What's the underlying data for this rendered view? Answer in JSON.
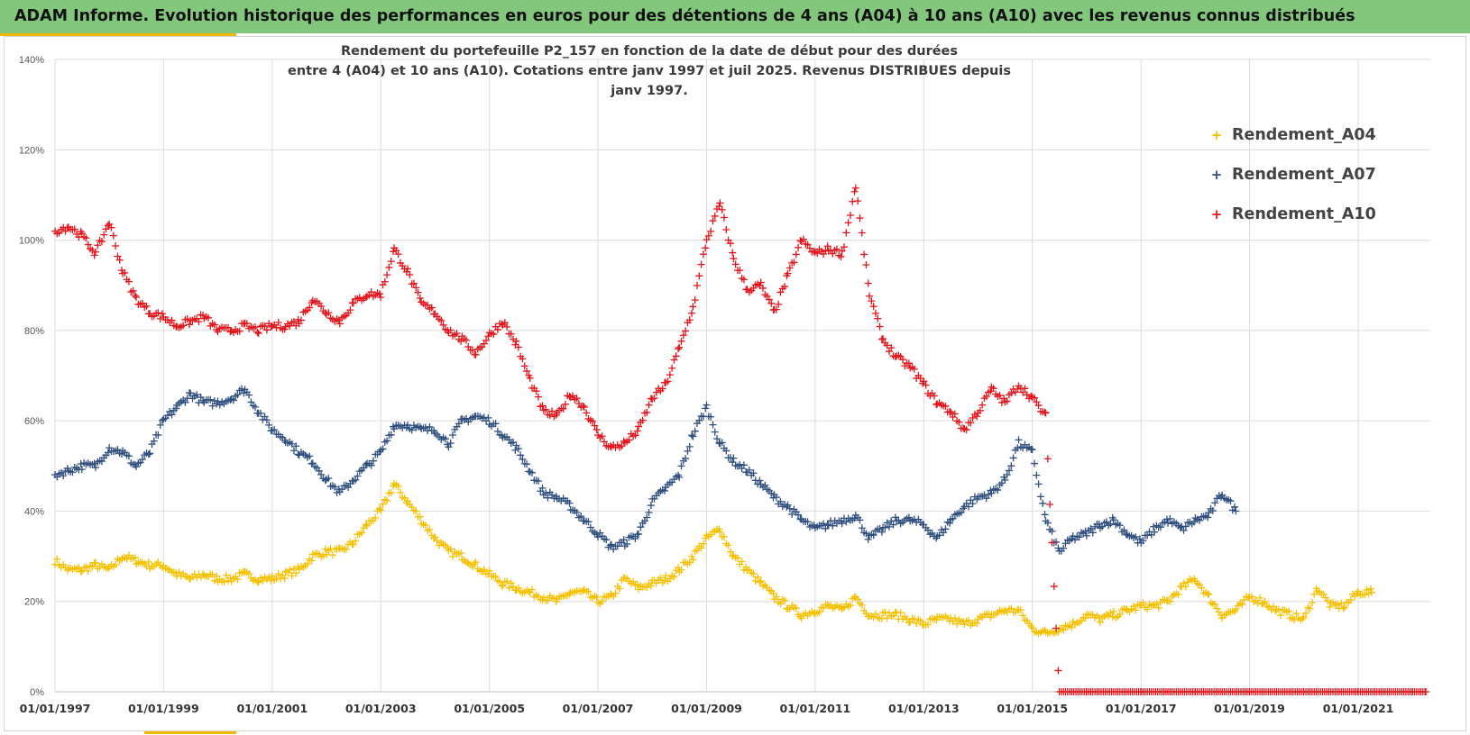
{
  "banner": {
    "text": "ADAM Informe. Evolution historique des performances en euros pour des détentions de 4 ans (A04) à 10 ans (A10) avec les revenus connus distribués"
  },
  "colors": {
    "banner_bg": "#82c77c",
    "accent": "#f0b800",
    "A04": "#f5c000",
    "A07": "#2f4f7f",
    "A10": "#e4141b"
  },
  "chart_data": {
    "type": "scatter",
    "title_line1": "Rendement du portefeuille P2_157 en fonction de la date de début pour des durées",
    "title_line2": "entre 4 (A04) et 10 ans (A10). Cotations entre janv 1997 et juil 2025. Revenus DISTRIBUES depuis janv 1997.",
    "x_axis": {
      "type": "date",
      "min": "1997-01-01",
      "max": "2022-05-01",
      "tick_labels": [
        "01/01/1997",
        "01/01/1999",
        "01/01/2001",
        "01/01/2003",
        "01/01/2005",
        "01/01/2007",
        "01/01/2009",
        "01/01/2011",
        "01/01/2013",
        "01/01/2015",
        "01/01/2017",
        "01/01/2019",
        "01/01/2021"
      ]
    },
    "y_axis": {
      "min": 0,
      "max": 1.4,
      "tick_labels": [
        "0%",
        "20%",
        "40%",
        "60%",
        "80%",
        "100%",
        "120%",
        "140%"
      ]
    },
    "grid": true,
    "legend_position": "top-right",
    "marker": "+",
    "series": [
      {
        "name": "Rendement_A04",
        "color": "#f5c000",
        "points": [
          [
            "1997-01",
            0.29
          ],
          [
            "1997-04",
            0.27
          ],
          [
            "1997-07",
            0.27
          ],
          [
            "1997-10",
            0.28
          ],
          [
            "1998-01",
            0.27
          ],
          [
            "1998-04",
            0.3
          ],
          [
            "1998-07",
            0.29
          ],
          [
            "1998-10",
            0.28
          ],
          [
            "1999-01",
            0.28
          ],
          [
            "1999-04",
            0.26
          ],
          [
            "1999-07",
            0.25
          ],
          [
            "1999-10",
            0.26
          ],
          [
            "2000-01",
            0.25
          ],
          [
            "2000-04",
            0.25
          ],
          [
            "2000-07",
            0.26
          ],
          [
            "2000-10",
            0.25
          ],
          [
            "2001-01",
            0.25
          ],
          [
            "2001-04",
            0.26
          ],
          [
            "2001-07",
            0.27
          ],
          [
            "2001-10",
            0.3
          ],
          [
            "2002-01",
            0.31
          ],
          [
            "2002-04",
            0.31
          ],
          [
            "2002-07",
            0.33
          ],
          [
            "2002-10",
            0.37
          ],
          [
            "2003-01",
            0.4
          ],
          [
            "2003-04",
            0.46
          ],
          [
            "2003-07",
            0.42
          ],
          [
            "2003-10",
            0.38
          ],
          [
            "2004-01",
            0.34
          ],
          [
            "2004-04",
            0.31
          ],
          [
            "2004-07",
            0.3
          ],
          [
            "2004-10",
            0.28
          ],
          [
            "2005-01",
            0.26
          ],
          [
            "2005-04",
            0.24
          ],
          [
            "2005-07",
            0.23
          ],
          [
            "2005-10",
            0.22
          ],
          [
            "2006-01",
            0.21
          ],
          [
            "2006-04",
            0.2
          ],
          [
            "2006-07",
            0.22
          ],
          [
            "2006-10",
            0.22
          ],
          [
            "2007-01",
            0.2
          ],
          [
            "2007-04",
            0.21
          ],
          [
            "2007-07",
            0.25
          ],
          [
            "2007-10",
            0.23
          ],
          [
            "2008-01",
            0.24
          ],
          [
            "2008-04",
            0.25
          ],
          [
            "2008-07",
            0.27
          ],
          [
            "2008-10",
            0.3
          ],
          [
            "2009-01",
            0.34
          ],
          [
            "2009-04",
            0.36
          ],
          [
            "2009-07",
            0.3
          ],
          [
            "2009-10",
            0.27
          ],
          [
            "2010-01",
            0.24
          ],
          [
            "2010-04",
            0.21
          ],
          [
            "2010-07",
            0.19
          ],
          [
            "2010-10",
            0.17
          ],
          [
            "2011-01",
            0.18
          ],
          [
            "2011-04",
            0.19
          ],
          [
            "2011-07",
            0.18
          ],
          [
            "2011-10",
            0.21
          ],
          [
            "2012-01",
            0.17
          ],
          [
            "2012-04",
            0.17
          ],
          [
            "2012-07",
            0.17
          ],
          [
            "2012-10",
            0.16
          ],
          [
            "2013-01",
            0.15
          ],
          [
            "2013-04",
            0.16
          ],
          [
            "2013-07",
            0.16
          ],
          [
            "2013-10",
            0.15
          ],
          [
            "2014-01",
            0.16
          ],
          [
            "2014-04",
            0.17
          ],
          [
            "2014-07",
            0.18
          ],
          [
            "2014-10",
            0.18
          ],
          [
            "2015-01",
            0.14
          ],
          [
            "2015-04",
            0.13
          ],
          [
            "2015-07",
            0.14
          ],
          [
            "2015-10",
            0.15
          ],
          [
            "2016-01",
            0.17
          ],
          [
            "2016-04",
            0.16
          ],
          [
            "2016-07",
            0.17
          ],
          [
            "2016-10",
            0.18
          ],
          [
            "2017-01",
            0.19
          ],
          [
            "2017-04",
            0.19
          ],
          [
            "2017-07",
            0.2
          ],
          [
            "2017-10",
            0.23
          ],
          [
            "2018-01",
            0.25
          ],
          [
            "2018-04",
            0.21
          ],
          [
            "2018-07",
            0.17
          ],
          [
            "2018-10",
            0.18
          ],
          [
            "2019-01",
            0.21
          ],
          [
            "2019-04",
            0.2
          ],
          [
            "2019-07",
            0.18
          ],
          [
            "2019-10",
            0.17
          ],
          [
            "2020-01",
            0.16
          ],
          [
            "2020-04",
            0.23
          ],
          [
            "2020-07",
            0.19
          ],
          [
            "2020-10",
            0.19
          ],
          [
            "2021-01",
            0.22
          ],
          [
            "2021-04",
            0.22
          ]
        ]
      },
      {
        "name": "Rendement_A07",
        "color": "#2f4f7f",
        "points": [
          [
            "1997-01",
            0.48
          ],
          [
            "1997-04",
            0.49
          ],
          [
            "1997-07",
            0.5
          ],
          [
            "1997-10",
            0.5
          ],
          [
            "1998-01",
            0.54
          ],
          [
            "1998-04",
            0.53
          ],
          [
            "1998-07",
            0.5
          ],
          [
            "1998-10",
            0.53
          ],
          [
            "1999-01",
            0.6
          ],
          [
            "1999-04",
            0.63
          ],
          [
            "1999-07",
            0.66
          ],
          [
            "1999-10",
            0.64
          ],
          [
            "2000-01",
            0.64
          ],
          [
            "2000-04",
            0.65
          ],
          [
            "2000-07",
            0.67
          ],
          [
            "2000-10",
            0.62
          ],
          [
            "2001-01",
            0.58
          ],
          [
            "2001-04",
            0.56
          ],
          [
            "2001-07",
            0.53
          ],
          [
            "2001-10",
            0.51
          ],
          [
            "2002-01",
            0.47
          ],
          [
            "2002-04",
            0.44
          ],
          [
            "2002-07",
            0.47
          ],
          [
            "2002-10",
            0.5
          ],
          [
            "2003-01",
            0.53
          ],
          [
            "2003-04",
            0.59
          ],
          [
            "2003-07",
            0.59
          ],
          [
            "2003-10",
            0.58
          ],
          [
            "2004-01",
            0.58
          ],
          [
            "2004-04",
            0.55
          ],
          [
            "2004-07",
            0.6
          ],
          [
            "2004-10",
            0.61
          ],
          [
            "2005-01",
            0.6
          ],
          [
            "2005-04",
            0.57
          ],
          [
            "2005-07",
            0.54
          ],
          [
            "2005-10",
            0.49
          ],
          [
            "2006-01",
            0.44
          ],
          [
            "2006-04",
            0.43
          ],
          [
            "2006-07",
            0.41
          ],
          [
            "2006-10",
            0.38
          ],
          [
            "2007-01",
            0.35
          ],
          [
            "2007-04",
            0.32
          ],
          [
            "2007-07",
            0.33
          ],
          [
            "2007-10",
            0.35
          ],
          [
            "2008-01",
            0.42
          ],
          [
            "2008-04",
            0.45
          ],
          [
            "2008-07",
            0.48
          ],
          [
            "2008-10",
            0.57
          ],
          [
            "2009-01",
            0.63
          ],
          [
            "2009-04",
            0.55
          ],
          [
            "2009-07",
            0.51
          ],
          [
            "2009-10",
            0.49
          ],
          [
            "2010-01",
            0.46
          ],
          [
            "2010-04",
            0.43
          ],
          [
            "2010-07",
            0.41
          ],
          [
            "2010-10",
            0.38
          ],
          [
            "2011-01",
            0.36
          ],
          [
            "2011-04",
            0.37
          ],
          [
            "2011-07",
            0.38
          ],
          [
            "2011-10",
            0.39
          ],
          [
            "2012-01",
            0.34
          ],
          [
            "2012-04",
            0.36
          ],
          [
            "2012-07",
            0.38
          ],
          [
            "2012-10",
            0.38
          ],
          [
            "2013-01",
            0.37
          ],
          [
            "2013-04",
            0.34
          ],
          [
            "2013-07",
            0.38
          ],
          [
            "2013-10",
            0.41
          ],
          [
            "2014-01",
            0.43
          ],
          [
            "2014-04",
            0.44
          ],
          [
            "2014-07",
            0.47
          ],
          [
            "2014-10",
            0.55
          ],
          [
            "2015-01",
            0.53
          ],
          [
            "2015-04",
            0.38
          ],
          [
            "2015-07",
            0.31
          ],
          [
            "2015-10",
            0.34
          ],
          [
            "2016-01",
            0.35
          ],
          [
            "2016-04",
            0.37
          ],
          [
            "2016-07",
            0.38
          ],
          [
            "2016-10",
            0.35
          ],
          [
            "2017-01",
            0.33
          ],
          [
            "2017-04",
            0.36
          ],
          [
            "2017-07",
            0.38
          ],
          [
            "2017-10",
            0.36
          ],
          [
            "2018-01",
            0.38
          ],
          [
            "2018-04",
            0.39
          ],
          [
            "2018-07",
            0.44
          ],
          [
            "2018-10",
            0.4
          ]
        ]
      },
      {
        "name": "Rendement_A10",
        "color": "#e4141b",
        "points": [
          [
            "1997-01",
            1.02
          ],
          [
            "1997-04",
            1.03
          ],
          [
            "1997-07",
            1.01
          ],
          [
            "1997-10",
            0.97
          ],
          [
            "1998-01",
            1.04
          ],
          [
            "1998-04",
            0.93
          ],
          [
            "1998-07",
            0.87
          ],
          [
            "1998-10",
            0.84
          ],
          [
            "1999-01",
            0.83
          ],
          [
            "1999-04",
            0.81
          ],
          [
            "1999-07",
            0.82
          ],
          [
            "1999-10",
            0.83
          ],
          [
            "2000-01",
            0.8
          ],
          [
            "2000-04",
            0.8
          ],
          [
            "2000-07",
            0.81
          ],
          [
            "2000-10",
            0.8
          ],
          [
            "2001-01",
            0.81
          ],
          [
            "2001-04",
            0.81
          ],
          [
            "2001-07",
            0.82
          ],
          [
            "2001-10",
            0.87
          ],
          [
            "2002-01",
            0.84
          ],
          [
            "2002-04",
            0.82
          ],
          [
            "2002-07",
            0.86
          ],
          [
            "2002-10",
            0.88
          ],
          [
            "2003-01",
            0.88
          ],
          [
            "2003-04",
            0.98
          ],
          [
            "2003-07",
            0.93
          ],
          [
            "2003-10",
            0.86
          ],
          [
            "2004-01",
            0.84
          ],
          [
            "2004-04",
            0.8
          ],
          [
            "2004-07",
            0.78
          ],
          [
            "2004-10",
            0.75
          ],
          [
            "2005-01",
            0.79
          ],
          [
            "2005-04",
            0.82
          ],
          [
            "2005-07",
            0.77
          ],
          [
            "2005-10",
            0.69
          ],
          [
            "2006-01",
            0.62
          ],
          [
            "2006-04",
            0.61
          ],
          [
            "2006-07",
            0.66
          ],
          [
            "2006-10",
            0.63
          ],
          [
            "2007-01",
            0.57
          ],
          [
            "2007-04",
            0.54
          ],
          [
            "2007-07",
            0.55
          ],
          [
            "2007-10",
            0.58
          ],
          [
            "2008-01",
            0.65
          ],
          [
            "2008-04",
            0.68
          ],
          [
            "2008-07",
            0.76
          ],
          [
            "2008-10",
            0.85
          ],
          [
            "2009-01",
            1.0
          ],
          [
            "2009-04",
            1.08
          ],
          [
            "2009-07",
            0.96
          ],
          [
            "2009-10",
            0.89
          ],
          [
            "2010-01",
            0.9
          ],
          [
            "2010-04",
            0.84
          ],
          [
            "2010-07",
            0.92
          ],
          [
            "2010-10",
            1.0
          ],
          [
            "2011-01",
            0.97
          ],
          [
            "2011-04",
            0.98
          ],
          [
            "2011-07",
            0.97
          ],
          [
            "2011-10",
            1.12
          ],
          [
            "2012-01",
            0.88
          ],
          [
            "2012-04",
            0.78
          ],
          [
            "2012-07",
            0.74
          ],
          [
            "2012-10",
            0.72
          ],
          [
            "2013-01",
            0.68
          ],
          [
            "2013-04",
            0.64
          ],
          [
            "2013-07",
            0.62
          ],
          [
            "2013-10",
            0.58
          ],
          [
            "2014-01",
            0.62
          ],
          [
            "2014-04",
            0.67
          ],
          [
            "2014-07",
            0.64
          ],
          [
            "2014-10",
            0.68
          ],
          [
            "2015-01",
            0.65
          ],
          [
            "2015-04",
            0.61
          ],
          [
            "2015-07",
            0.0
          ],
          [
            "2016-01",
            0.0
          ],
          [
            "2016-07",
            0.0
          ],
          [
            "2017-01",
            0.0
          ],
          [
            "2017-07",
            0.0
          ],
          [
            "2018-01",
            0.0
          ],
          [
            "2018-07",
            0.0
          ],
          [
            "2019-01",
            0.0
          ],
          [
            "2019-07",
            0.0
          ],
          [
            "2020-01",
            0.0
          ],
          [
            "2020-07",
            0.0
          ],
          [
            "2021-01",
            0.0
          ],
          [
            "2021-07",
            0.0
          ],
          [
            "2022-01",
            0.0
          ],
          [
            "2022-04",
            0.0
          ]
        ]
      }
    ]
  }
}
